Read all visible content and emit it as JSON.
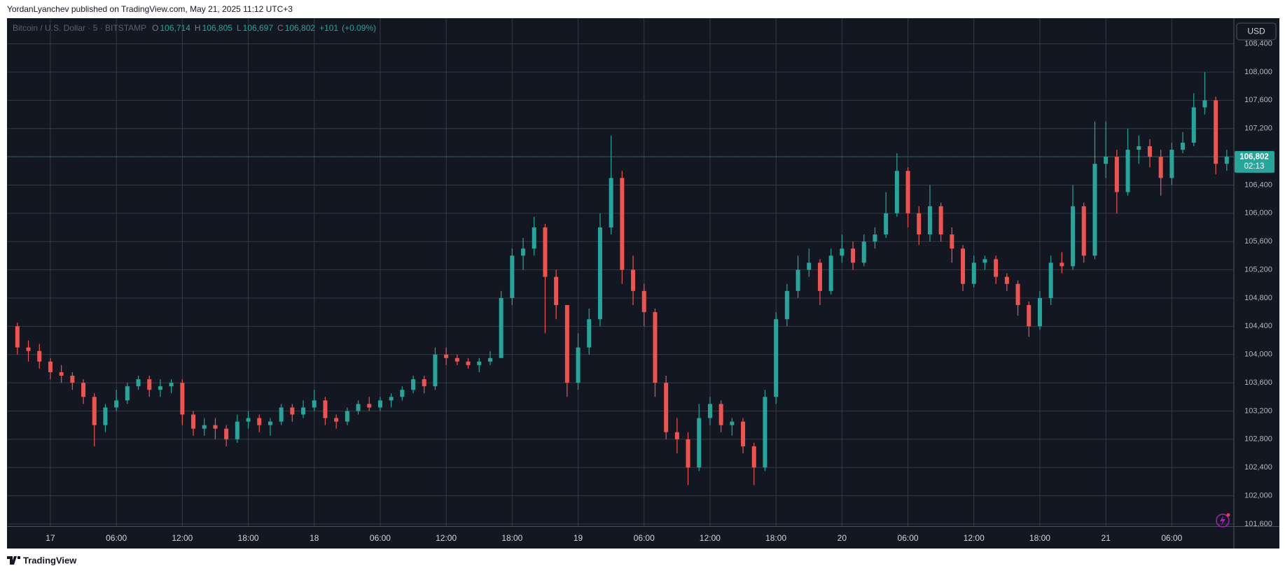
{
  "chart_data": {
    "type": "candlestick",
    "publisher_note": "YordanLyanchev published on TradingView.com, May 21, 2025 11:12 UTC+3",
    "symbol_title": "Bitcoin / U.S. Dollar · 5 · BITSTAMP",
    "ohlc_legend": [
      {
        "name": "O",
        "value": {
          "value": 106714,
          "label": "106,714"
        }
      },
      {
        "name": "H",
        "value": {
          "value": 106805,
          "label": "106,805"
        }
      },
      {
        "name": "L",
        "value": {
          "value": 106697,
          "label": "106,697"
        }
      },
      {
        "name": "C",
        "value": {
          "value": 106802,
          "label": "106,802"
        }
      }
    ],
    "change": {
      "value": 101,
      "label": "+101"
    },
    "change_percent": {
      "value": 0.09,
      "label": "(+0.09%)"
    },
    "currency": "USD",
    "last_price": {
      "value": 106802,
      "label": "106,802"
    },
    "countdown": "02:13",
    "footer_brand": "TradingView",
    "up_color": "#26a69a",
    "down_color": "#ef5350",
    "grid": true,
    "categories": [
      null,
      null,
      null,
      "17",
      null,
      null,
      null,
      null,
      null,
      "06:00",
      null,
      null,
      null,
      null,
      null,
      "12:00",
      null,
      null,
      null,
      null,
      null,
      "18:00",
      null,
      null,
      null,
      null,
      null,
      "18",
      null,
      null,
      null,
      null,
      null,
      "06:00",
      null,
      null,
      null,
      null,
      null,
      "12:00",
      null,
      null,
      null,
      null,
      null,
      "18:00",
      null,
      null,
      null,
      null,
      null,
      "19",
      null,
      null,
      null,
      null,
      null,
      "06:00",
      null,
      null,
      null,
      null,
      null,
      "12:00",
      null,
      null,
      null,
      null,
      null,
      "18:00",
      null,
      null,
      null,
      null,
      null,
      "20",
      null,
      null,
      null,
      null,
      null,
      "06:00",
      null,
      null,
      null,
      null,
      null,
      "12:00",
      null,
      null,
      null,
      null,
      null,
      "18:00",
      null,
      null,
      null,
      null,
      null,
      "21",
      null,
      null,
      null,
      null,
      null,
      "06:00",
      null,
      null,
      null,
      null,
      null
    ],
    "open": [
      104400,
      104100,
      104050,
      103900,
      103750,
      103700,
      103600,
      103400,
      103000,
      103250,
      103350,
      103550,
      103650,
      103500,
      103550,
      103600,
      103150,
      102950,
      103000,
      102950,
      102800,
      103050,
      103100,
      103000,
      103050,
      103250,
      103150,
      103250,
      103350,
      103100,
      103050,
      103200,
      103300,
      103250,
      103350,
      103400,
      103500,
      103650,
      103550,
      104000,
      103950,
      103900,
      103850,
      103900,
      103950,
      104800,
      105400,
      105500,
      105800,
      105100,
      104700,
      103600,
      104100,
      104500,
      105800,
      106500,
      105200,
      104900,
      104600,
      103600,
      102900,
      102800,
      102400,
      103100,
      103300,
      103000,
      103050,
      102700,
      102400,
      103400,
      104500,
      104900,
      105200,
      105300,
      104900,
      105400,
      105500,
      105300,
      105600,
      105700,
      106000,
      106600,
      106000,
      105700,
      106100,
      105700,
      105500,
      105000,
      105300,
      105350,
      105100,
      105000,
      104700,
      104400,
      104800,
      105300,
      105250,
      106100,
      105400,
      106700,
      106800,
      106300,
      106900,
      106950,
      106800,
      106500,
      106900,
      107000,
      107500,
      107600,
      106700
    ],
    "high": [
      104450,
      104200,
      104150,
      103950,
      103850,
      103750,
      103650,
      103450,
      103300,
      103500,
      103600,
      103700,
      103700,
      103650,
      103650,
      103650,
      103200,
      103100,
      103100,
      103000,
      103150,
      103200,
      103150,
      103100,
      103300,
      103300,
      103350,
      103500,
      103400,
      103150,
      103250,
      103350,
      103400,
      103400,
      103450,
      103550,
      103700,
      103700,
      104100,
      104100,
      104000,
      103950,
      103950,
      104050,
      104900,
      105500,
      105650,
      105950,
      105850,
      105200,
      104700,
      104300,
      104650,
      106000,
      107100,
      106600,
      105400,
      105000,
      104650,
      103700,
      103100,
      102900,
      103300,
      103400,
      103350,
      103100,
      103100,
      102750,
      103500,
      104600,
      105000,
      105400,
      105500,
      105350,
      105500,
      105700,
      105600,
      105700,
      105800,
      106300,
      106850,
      106650,
      106100,
      106400,
      106150,
      105800,
      105550,
      105400,
      105400,
      105400,
      105150,
      105050,
      104750,
      104900,
      105400,
      105450,
      106400,
      106150,
      107300,
      107300,
      106900,
      107200,
      107100,
      107050,
      106900,
      107000,
      107150,
      107700,
      108000,
      107650,
      106900
    ],
    "low": [
      104000,
      103900,
      103800,
      103650,
      103600,
      103500,
      103300,
      102700,
      102900,
      103200,
      103300,
      103500,
      103400,
      103400,
      103450,
      103000,
      102850,
      102850,
      102800,
      102700,
      102750,
      102950,
      102900,
      102850,
      103000,
      103050,
      103100,
      103200,
      103000,
      102950,
      103000,
      103150,
      103200,
      103200,
      103250,
      103350,
      103450,
      103450,
      103500,
      103850,
      103850,
      103800,
      103750,
      103850,
      103950,
      104700,
      105200,
      105400,
      104300,
      104500,
      103400,
      103500,
      104000,
      104400,
      105700,
      105000,
      104700,
      104400,
      103400,
      102800,
      102600,
      102150,
      102350,
      103000,
      102900,
      102850,
      102600,
      102150,
      102350,
      103300,
      104400,
      104800,
      105100,
      104700,
      104850,
      105300,
      105200,
      105250,
      105500,
      105650,
      105950,
      105800,
      105550,
      105600,
      105600,
      105300,
      104900,
      104950,
      105200,
      105000,
      104900,
      104550,
      104250,
      104350,
      104700,
      105150,
      105200,
      105300,
      105350,
      106500,
      106000,
      106250,
      106700,
      106650,
      106250,
      106400,
      106850,
      106950,
      107400,
      106550,
      106600
    ],
    "close": [
      104100,
      104050,
      103900,
      103750,
      103700,
      103600,
      103400,
      103000,
      103250,
      103350,
      103550,
      103650,
      103500,
      103550,
      103600,
      103150,
      102950,
      103000,
      102950,
      102800,
      103050,
      103100,
      103000,
      103050,
      103250,
      103150,
      103250,
      103350,
      103100,
      103050,
      103200,
      103300,
      103250,
      103350,
      103400,
      103500,
      103650,
      103550,
      104000,
      103950,
      103900,
      103850,
      103900,
      103950,
      104800,
      105400,
      105500,
      105800,
      105100,
      104700,
      103600,
      104100,
      104500,
      105800,
      106500,
      105200,
      104900,
      104600,
      103600,
      102900,
      102800,
      102400,
      103100,
      103300,
      103000,
      103050,
      102700,
      102400,
      103400,
      104500,
      104900,
      105200,
      105300,
      104900,
      105400,
      105500,
      105300,
      105600,
      105700,
      106000,
      106600,
      106000,
      105700,
      106100,
      105700,
      105500,
      105000,
      105300,
      105350,
      105100,
      105000,
      104700,
      104400,
      104800,
      105300,
      105250,
      106100,
      105400,
      106700,
      106800,
      106300,
      106900,
      106950,
      106800,
      106500,
      106900,
      107000,
      107500,
      107600,
      106700,
      106802
    ],
    "ylim": [
      101565,
      108707
    ],
    "yticks": [
      {
        "value": 101600,
        "label": "101,600"
      },
      {
        "value": 102000,
        "label": "102,000"
      },
      {
        "value": 102400,
        "label": "102,400"
      },
      {
        "value": 102800,
        "label": "102,800"
      },
      {
        "value": 103200,
        "label": "103,200"
      },
      {
        "value": 103600,
        "label": "103,600"
      },
      {
        "value": 104000,
        "label": "104,000"
      },
      {
        "value": 104400,
        "label": "104,400"
      },
      {
        "value": 104800,
        "label": "104,800"
      },
      {
        "value": 105200,
        "label": "105,200"
      },
      {
        "value": 105600,
        "label": "105,600"
      },
      {
        "value": 106000,
        "label": "106,000"
      },
      {
        "value": 106400,
        "label": "106,400"
      },
      {
        "value": 106800,
        "label": "106,800"
      },
      {
        "value": 107200,
        "label": "107,200"
      },
      {
        "value": 107600,
        "label": "107,600"
      },
      {
        "value": 108000,
        "label": "108,000"
      },
      {
        "value": 108400,
        "label": "108,400"
      }
    ]
  }
}
